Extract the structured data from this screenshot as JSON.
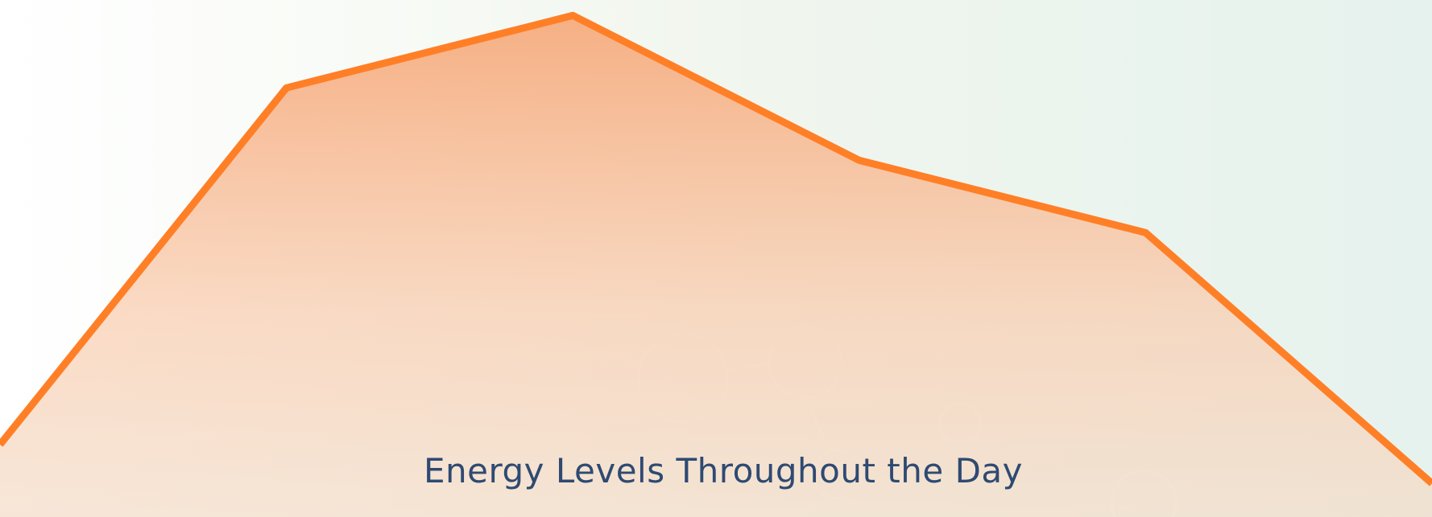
{
  "chart_data": {
    "type": "area",
    "title": "Energy Levels Throughout the Day",
    "categories": [
      null,
      null,
      null,
      null,
      null,
      null
    ],
    "values": [
      14,
      83,
      97,
      69,
      55,
      6.5
    ],
    "color": "#ff7f27",
    "ylim": [
      0,
      100
    ]
  }
}
